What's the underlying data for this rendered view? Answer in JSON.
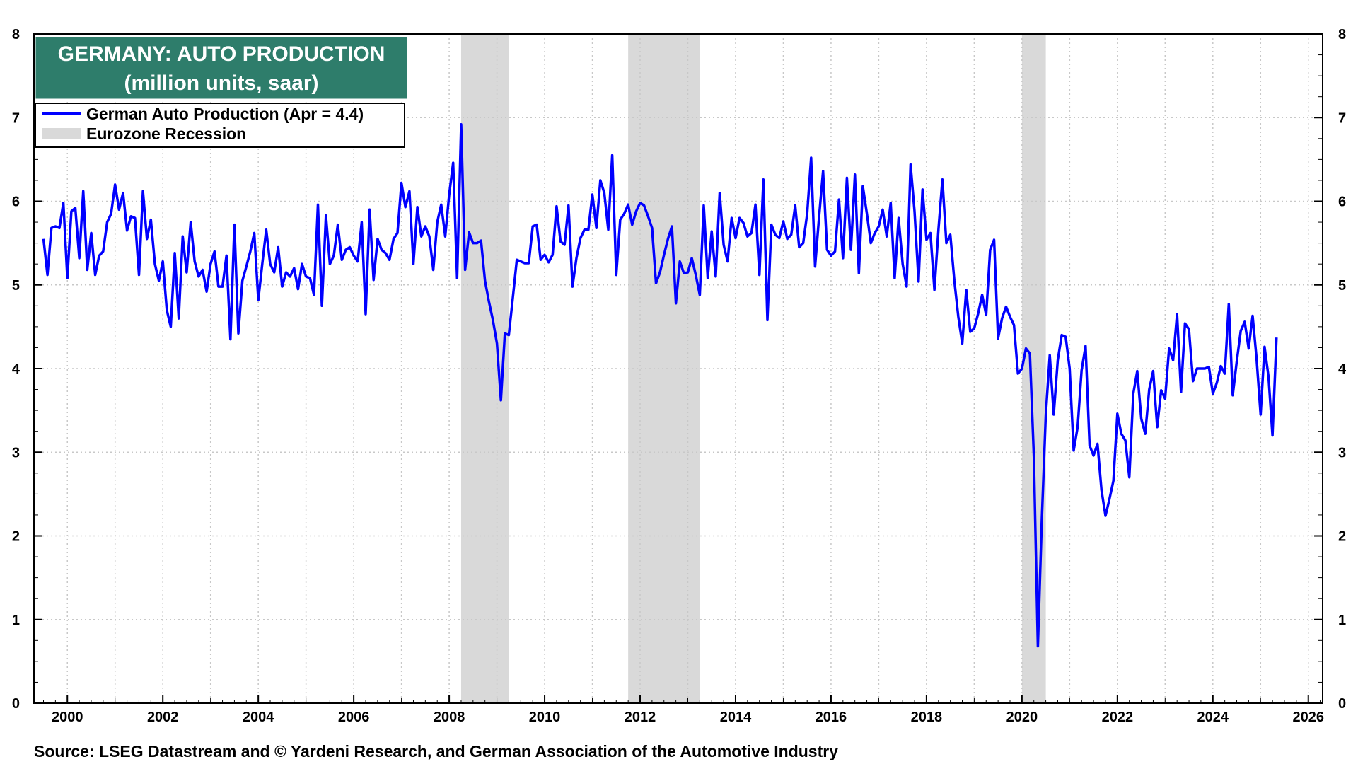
{
  "chart_data": {
    "type": "line",
    "title": "GERMANY: AUTO PRODUCTION",
    "subtitle": "(million units, saar)",
    "source": "Source: LSEG Datastream and © Yardeni Research, and German Association of the Automotive Industry",
    "xlim": [
      1999.3,
      2026.3
    ],
    "ylim": [
      0,
      8
    ],
    "grid": true,
    "x_ticks": [
      2000,
      2002,
      2004,
      2006,
      2008,
      2010,
      2012,
      2014,
      2016,
      2018,
      2020,
      2022,
      2024,
      2026
    ],
    "x_tick_labels": [
      "2000",
      "2002",
      "2004",
      "2006",
      "2008",
      "2010",
      "2012",
      "2014",
      "2016",
      "2018",
      "2020",
      "2022",
      "2024",
      "2026"
    ],
    "y_ticks": [
      0,
      1,
      2,
      3,
      4,
      5,
      6,
      7,
      8
    ],
    "y_tick_labels": [
      "0",
      "1",
      "2",
      "3",
      "4",
      "5",
      "6",
      "7",
      "8"
    ],
    "legend_position": "top-left",
    "legend": [
      {
        "label": "German Auto Production (Apr = 4.4)",
        "color": "#0000ff",
        "kind": "line"
      },
      {
        "label": "Eurozone Recession",
        "color": "#d9d9d9",
        "kind": "band"
      }
    ],
    "recession_bands": [
      {
        "start": 2008.25,
        "end": 2009.25
      },
      {
        "start": 2011.75,
        "end": 2013.25
      },
      {
        "start": 2020.0,
        "end": 2020.5
      }
    ],
    "series": [
      {
        "name": "German Auto Production",
        "color": "#0000ff",
        "start_year": 1999.5,
        "step": 0.083333,
        "values": [
          5.55,
          5.12,
          5.68,
          5.7,
          5.68,
          5.98,
          5.08,
          5.88,
          5.92,
          5.32,
          6.12,
          5.18,
          5.62,
          5.12,
          5.35,
          5.4,
          5.75,
          5.85,
          6.2,
          5.9,
          6.1,
          5.65,
          5.82,
          5.8,
          5.12,
          6.12,
          5.55,
          5.78,
          5.25,
          5.05,
          5.28,
          4.7,
          4.5,
          5.38,
          4.6,
          5.58,
          5.15,
          5.75,
          5.28,
          5.1,
          5.18,
          4.92,
          5.25,
          5.4,
          4.98,
          4.98,
          5.35,
          4.35,
          5.72,
          4.42,
          5.05,
          5.22,
          5.4,
          5.62,
          4.82,
          5.25,
          5.66,
          5.25,
          5.15,
          5.45,
          4.98,
          5.15,
          5.1,
          5.2,
          4.95,
          5.25,
          5.1,
          5.08,
          4.88,
          5.96,
          4.75,
          5.83,
          5.25,
          5.35,
          5.72,
          5.3,
          5.42,
          5.45,
          5.35,
          5.28,
          5.75,
          4.65,
          5.9,
          5.06,
          5.55,
          5.42,
          5.38,
          5.3,
          5.55,
          5.62,
          6.22,
          5.93,
          6.12,
          5.25,
          5.93,
          5.58,
          5.7,
          5.58,
          5.18,
          5.75,
          5.96,
          5.58,
          6.08,
          6.46,
          5.08,
          6.92,
          5.18,
          5.63,
          5.5,
          5.5,
          5.53,
          5.05,
          4.8,
          4.58,
          4.3,
          3.62,
          4.42,
          4.4,
          4.85,
          5.3,
          5.28,
          5.26,
          5.26,
          5.7,
          5.72,
          5.3,
          5.36,
          5.27,
          5.36,
          5.94,
          5.52,
          5.48,
          5.95,
          4.98,
          5.32,
          5.56,
          5.66,
          5.66,
          6.08,
          5.68,
          6.25,
          6.1,
          5.66,
          6.55,
          5.12,
          5.78,
          5.85,
          5.96,
          5.72,
          5.88,
          5.98,
          5.95,
          5.82,
          5.68,
          5.02,
          5.15,
          5.36,
          5.55,
          5.7,
          4.78,
          5.28,
          5.14,
          5.15,
          5.32,
          5.12,
          4.88,
          5.95,
          5.08,
          5.64,
          5.1,
          6.1,
          5.48,
          5.28,
          5.8,
          5.56,
          5.8,
          5.74,
          5.58,
          5.62,
          5.96,
          5.12,
          6.26,
          4.58,
          5.72,
          5.6,
          5.56,
          5.76,
          5.55,
          5.6,
          5.95,
          5.45,
          5.5,
          5.85,
          6.52,
          5.22,
          5.82,
          6.36,
          5.42,
          5.35,
          5.4,
          6.02,
          5.32,
          6.28,
          5.42,
          6.32,
          5.14,
          6.18,
          5.86,
          5.5,
          5.62,
          5.7,
          5.9,
          5.58,
          5.98,
          5.08,
          5.8,
          5.25,
          4.98,
          6.44,
          5.88,
          5.04,
          6.14,
          5.54,
          5.62,
          4.94,
          5.66,
          6.26,
          5.5,
          5.6,
          5.05,
          4.62,
          4.3,
          4.94,
          4.44,
          4.48,
          4.66,
          4.88,
          4.64,
          5.42,
          5.54,
          4.36,
          4.6,
          4.74,
          4.62,
          4.52,
          3.94,
          4.0,
          4.24,
          4.18,
          2.95,
          0.68,
          2.2,
          3.45,
          4.16,
          3.45,
          4.1,
          4.4,
          4.38,
          4.0,
          3.02,
          3.3,
          3.98,
          4.27,
          3.08,
          2.96,
          3.1,
          2.55,
          2.24,
          2.44,
          2.66,
          3.46,
          3.22,
          3.14,
          2.7,
          3.7,
          3.97,
          3.4,
          3.22,
          3.75,
          3.97,
          3.3,
          3.74,
          3.64,
          4.24,
          4.1,
          4.65,
          3.72,
          4.54,
          4.47,
          3.85,
          4.0,
          4.0,
          4.0,
          4.02,
          3.7,
          3.83,
          4.03,
          3.94,
          4.77,
          3.68,
          4.08,
          4.45,
          4.56,
          4.24,
          4.63,
          4.12,
          3.45,
          4.26,
          3.9,
          3.2,
          4.37
        ]
      }
    ]
  }
}
